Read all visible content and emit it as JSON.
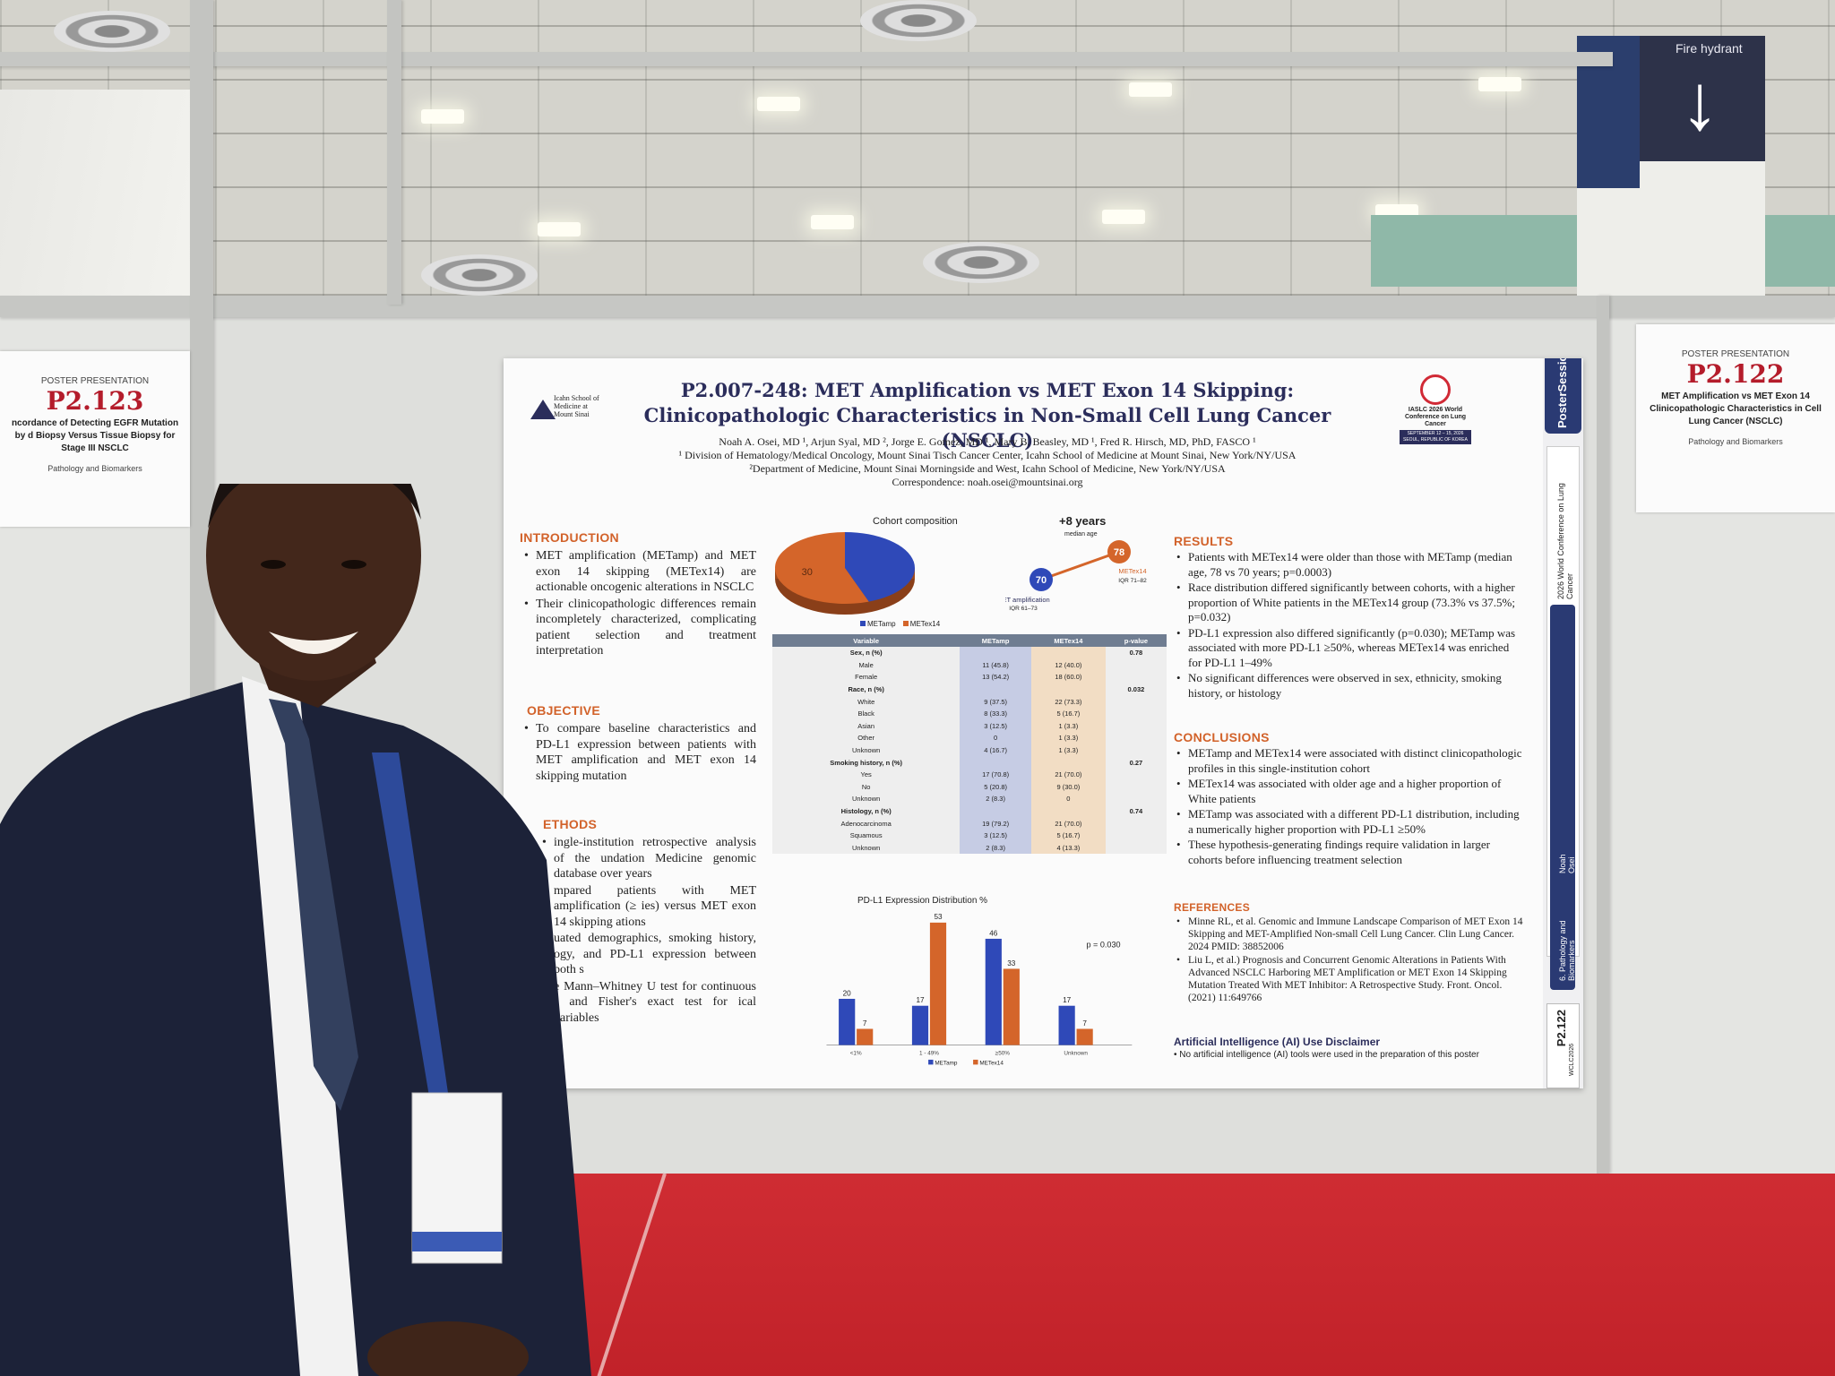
{
  "environment": {
    "sign_text": "Fire hydrant",
    "sign_arrow": "↓",
    "colors": {
      "floor": "#c9262d",
      "board": "#dedfdc",
      "poster_title": "#2b2d5b",
      "section_heading": "#d2622a"
    }
  },
  "left_poster": {
    "label": "POSTER PRESENTATION",
    "number": "P2.123",
    "title": "ncordance of Detecting EGFR Mutation by d Biopsy Versus Tissue Biopsy for Stage III NSCLC",
    "topic": "Pathology and Biomarkers"
  },
  "right_poster": {
    "label": "POSTER PRESENTATION",
    "number": "P2.122",
    "title": "MET Amplification vs MET Exon 14 Clinicopathologic Characteristics in Cell Lung Cancer (NSCLC)",
    "topic": "Pathology and Biomarkers"
  },
  "poster": {
    "title_line1": "P2.007-248: MET Amplification vs MET Exon 14 Skipping:",
    "title_line2": "Clinicopathologic Characteristics in Non-Small Cell Lung Cancer (NSCLC)",
    "authors": "Noah A. Osei, MD ¹, Arjun Syal, MD ², Jorge E. Gomez, MD ¹, Mary B. Beasley, MD ¹, Fred R. Hirsch, MD, PhD, FASCO ¹",
    "affiliation1": "¹ Division of Hematology/Medical Oncology, Mount Sinai Tisch Cancer Center, Icahn School of Medicine at Mount Sinai, New York/NY/USA",
    "affiliation2": "²Department of Medicine, Mount Sinai Morningside and West, Icahn School of Medicine, New York/NY/USA",
    "correspondence": "Correspondence: noah.osei@mountsinai.org",
    "logo_left": "Icahn School of Medicine at Mount Sinai",
    "logo_right": "IASLC 2026 World Conference on Lung Cancer",
    "logo_right_dates": "SEPTEMBER 12 – 15, 2026 SEOUL, REPUBLIC OF KOREA",
    "sidebar_brand": "PosterSessionOnline",
    "sidebar_conf": "2026 World Conference on Lung Cancer",
    "sidebar_topic": "6. Pathology and Biomarkers",
    "sidebar_author": "Noah Osei",
    "sidebar_number": "P2.122",
    "sidebar_tag": "WCLC2026",
    "intro_heading": "INTRODUCTION",
    "intro": [
      "MET amplification (METamp) and MET exon 14 skipping (METex14) are actionable oncogenic alterations in NSCLC",
      "Their clinicopathologic differences remain incompletely characterized, complicating patient selection and treatment interpretation"
    ],
    "objective_heading": "OBJECTIVE",
    "objective": [
      "To compare baseline characteristics and PD-L1 expression between patients with MET amplification and MET exon 14 skipping mutation"
    ],
    "methods_heading": "ETHODS",
    "methods": [
      "ingle-institution retrospective analysis of the undation Medicine genomic database over years",
      "mpared patients with MET amplification (≥ ies) versus MET exon 14 skipping ations",
      "uated demographics, smoking history, ogy, and PD-L1 expression between both s",
      "e Mann–Whitney U test for continuous s and Fisher's exact test for ical variables"
    ],
    "results_heading": "RESULTS",
    "results": [
      "Patients with METex14 were older than those with METamp (median age, 78 vs 70 years; p=0.0003)",
      "Race distribution differed significantly between cohorts, with a higher proportion of White patients in the METex14 group (73.3% vs 37.5%; p=0.032)",
      "PD-L1 expression also differed significantly (p=0.030); METamp was associated with more PD-L1 ≥50%, whereas METex14 was enriched for PD-L1 1–49%",
      "No significant differences were observed in sex, ethnicity, smoking history, or histology"
    ],
    "conclusions_heading": "CONCLUSIONS",
    "conclusions": [
      "METamp and METex14 were associated with distinct clinicopathologic profiles in this single-institution cohort",
      "METex14 was associated with older age and a higher proportion of White patients",
      "METamp was associated with a different PD-L1 distribution, including a numerically higher proportion with PD-L1 ≥50%",
      "These hypothesis-generating findings require validation in larger cohorts before influencing treatment selection"
    ],
    "references_heading": "REFERENCES",
    "references": [
      "Minne RL, et al. Genomic and Immune Landscape Comparison of MET Exon 14 Skipping and MET-Amplified Non-small Cell Lung Cancer. Clin Lung Cancer. 2024  PMID: 38852006",
      "Liu L, et al.) Prognosis and Concurrent Genomic Alterations in Patients With Advanced NSCLC Harboring MET Amplification or MET Exon 14 Skipping Mutation Treated With MET Inhibitor: A Retrospective Study. Front. Oncol. (2021) 11:649766"
    ],
    "ai_heading": "Artificial Intelligence (AI) Use Disclaimer",
    "ai_text": "No artificial intelligence (AI) tools were used in the preparation of this poster",
    "age": {
      "headline": "+8 years",
      "sub": "median age",
      "met_amp_age": "70",
      "met_ex14_age": "78",
      "met_amp_label": "MET amplification",
      "met_amp_iqr": "IQR 61–73",
      "met_ex14_label": "METex14",
      "met_ex14_iqr": "IQR 71–82"
    },
    "table": {
      "headers": [
        "Variable",
        "METamp",
        "METex14",
        "p-value"
      ],
      "rows": [
        {
          "v": "Sex, n (%)",
          "a": "",
          "b": "",
          "p": "0.78",
          "h": true
        },
        {
          "v": "Male",
          "a": "11 (45.8)",
          "b": "12 (40.0)",
          "p": ""
        },
        {
          "v": "Female",
          "a": "13 (54.2)",
          "b": "18 (60.0)",
          "p": ""
        },
        {
          "v": "Race, n (%)",
          "a": "",
          "b": "",
          "p": "0.032",
          "h": true
        },
        {
          "v": "White",
          "a": "9 (37.5)",
          "b": "22 (73.3)",
          "p": ""
        },
        {
          "v": "Black",
          "a": "8 (33.3)",
          "b": "5 (16.7)",
          "p": ""
        },
        {
          "v": "Asian",
          "a": "3 (12.5)",
          "b": "1 (3.3)",
          "p": ""
        },
        {
          "v": "Other",
          "a": "0",
          "b": "1 (3.3)",
          "p": ""
        },
        {
          "v": "Unknown",
          "a": "4 (16.7)",
          "b": "1 (3.3)",
          "p": ""
        },
        {
          "v": "Smoking history, n (%)",
          "a": "",
          "b": "",
          "p": "0.27",
          "h": true
        },
        {
          "v": "Yes",
          "a": "17 (70.8)",
          "b": "21 (70.0)",
          "p": ""
        },
        {
          "v": "No",
          "a": "5 (20.8)",
          "b": "9 (30.0)",
          "p": ""
        },
        {
          "v": "Unknown",
          "a": "2 (8.3)",
          "b": "0",
          "p": ""
        },
        {
          "v": "Histology, n (%)",
          "a": "",
          "b": "",
          "p": "0.74",
          "h": true
        },
        {
          "v": "Adenocarcinoma",
          "a": "19 (79.2)",
          "b": "21 (70.0)",
          "p": ""
        },
        {
          "v": "Squamous",
          "a": "3 (12.5)",
          "b": "5 (16.7)",
          "p": ""
        },
        {
          "v": "Unknown",
          "a": "2 (8.3)",
          "b": "4 (13.3)",
          "p": ""
        }
      ]
    }
  },
  "chart_data": [
    {
      "type": "pie",
      "title": "Cohort composition",
      "categories": [
        "METamp",
        "METex14"
      ],
      "values": [
        24,
        30
      ],
      "labels": [
        "",
        "30"
      ],
      "colors": [
        "#2f49b8",
        "#d4652a"
      ],
      "legend": "bottom"
    },
    {
      "type": "bar",
      "title": "PD-L1 Expression Distribution %",
      "annotation": "p = 0.030",
      "categories": [
        "<1%",
        "1 - 49%",
        "≥50%",
        "Unknown"
      ],
      "series": [
        {
          "name": "METamp",
          "values": [
            20,
            17,
            46,
            17
          ],
          "color": "#2f49b8"
        },
        {
          "name": "METex14",
          "values": [
            7,
            53,
            33,
            7
          ],
          "color": "#d4652a"
        }
      ],
      "ylim": [
        0,
        55
      ],
      "legend": "bottom"
    }
  ]
}
